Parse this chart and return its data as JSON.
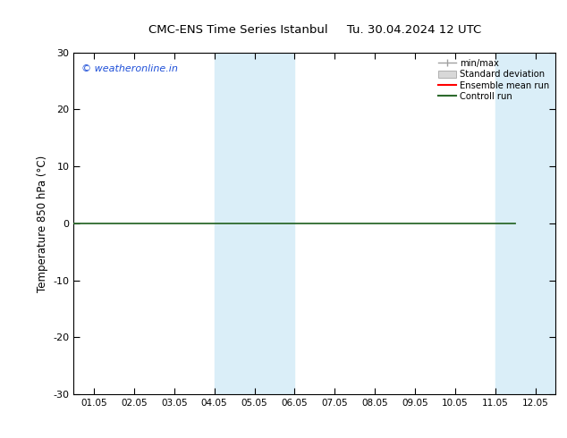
{
  "title": "CMC-ENS Time Series Istanbul",
  "title2": "Tu. 30.04.2024 12 UTC",
  "ylabel": "Temperature 850 hPa (°C)",
  "ylim": [
    -30,
    30
  ],
  "yticks": [
    -30,
    -20,
    -10,
    0,
    10,
    20,
    30
  ],
  "xtick_labels": [
    "01.05",
    "02.05",
    "03.05",
    "04.05",
    "05.05",
    "06.05",
    "07.05",
    "08.05",
    "09.05",
    "10.05",
    "11.05",
    "12.05"
  ],
  "x_values": [
    0,
    1,
    2,
    3,
    4,
    5,
    6,
    7,
    8,
    9,
    10,
    11
  ],
  "control_run_y": 0,
  "shaded_bands": [
    {
      "xmin": 3.0,
      "xmax": 5.0
    },
    {
      "xmin": 10.0,
      "xmax": 11.8
    }
  ],
  "shade_color": "#daeef8",
  "control_run_color": "#2d6a2d",
  "ensemble_mean_color": "#ff0000",
  "minmax_color": "#a0a0a0",
  "std_color": "#d8d8d8",
  "watermark_text": "© weatheronline.in",
  "watermark_color": "#1e4fd8",
  "background_color": "#ffffff",
  "legend_labels": [
    "min/max",
    "Standard deviation",
    "Ensemble mean run",
    "Controll run"
  ],
  "legend_colors": [
    "#a0a0a0",
    "#d8d8d8",
    "#ff0000",
    "#2d6a2d"
  ]
}
